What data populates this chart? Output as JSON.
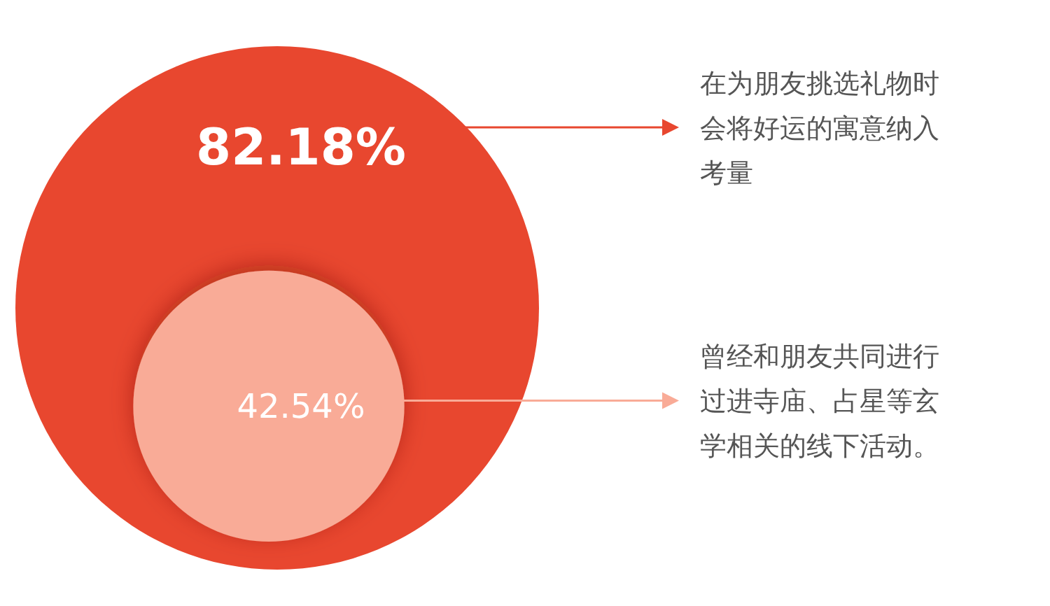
{
  "chart_data": {
    "type": "other",
    "categories": [
      "在为朋友挑选礼物时会将好运的寓意纳入考量",
      "曾经和朋友共同进行过进寺庙、占星等玄学相关的线下活动。"
    ],
    "values": [
      82.18,
      42.54
    ],
    "colors": [
      "#e8472f",
      "#f9ab97"
    ],
    "value_labels": [
      "82.18%",
      "42.54%"
    ]
  }
}
